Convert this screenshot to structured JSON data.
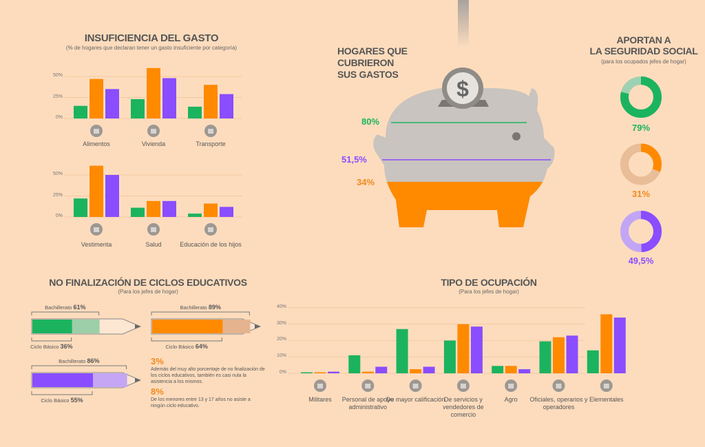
{
  "colors": {
    "green": "#1cb35f",
    "orange": "#ff8a00",
    "purple": "#8a4dff",
    "grey": "#c9c4bf",
    "bg": "#fddcbd"
  },
  "gasto": {
    "title": "INSUFICIENCIA DEL GASTO",
    "subtitle": "(% de hogares que declaran tener un gasto insuficiente por categoría)"
  },
  "chart_data": [
    {
      "type": "bar",
      "title": "INSUFICIENCIA DEL GASTO (fila 1)",
      "yticks": [
        "0%",
        "25%",
        "50%"
      ],
      "ylim": [
        0,
        65
      ],
      "categories": [
        "Alimentos",
        "Vivienda",
        "Transporte"
      ],
      "icons": [
        "plate-icon",
        "house-icon",
        "bus-icon"
      ],
      "series": [
        {
          "name": "green",
          "values": [
            15,
            23,
            14
          ]
        },
        {
          "name": "orange",
          "values": [
            47,
            60,
            40
          ]
        },
        {
          "name": "purple",
          "values": [
            35,
            48,
            29
          ]
        }
      ]
    },
    {
      "type": "bar",
      "title": "INSUFICIENCIA DEL GASTO (fila 2)",
      "yticks": [
        "0%",
        "25%",
        "50%"
      ],
      "ylim": [
        0,
        65
      ],
      "categories": [
        "Vestimenta",
        "Salud",
        "Educación de los hijos"
      ],
      "icons": [
        "clothes-icon",
        "health-icon",
        "graduation-cap-icon"
      ],
      "series": [
        {
          "name": "green",
          "values": [
            22,
            11,
            4
          ]
        },
        {
          "name": "orange",
          "values": [
            61,
            19,
            16
          ]
        },
        {
          "name": "purple",
          "values": [
            50,
            19,
            12
          ]
        }
      ]
    },
    {
      "type": "bar",
      "title": "TIPO DE OCUPACIÓN",
      "yticks": [
        "0%",
        "10%",
        "20%",
        "30%",
        "40%"
      ],
      "ylim": [
        0,
        40
      ],
      "categories": [
        "Militares",
        "Personal de apoyo administrativo",
        "De mayor calificación",
        "De servicios y vendedores de comercio",
        "Agro",
        "Oficiales, operarios y operadores",
        "Elementales"
      ],
      "icons": [
        "helmet-icon",
        "folder-icon",
        "flask-icon",
        "cart-icon",
        "tractor-icon",
        "tools-icon",
        "broom-icon"
      ],
      "series": [
        {
          "name": "green",
          "values": [
            0.5,
            11,
            27,
            20,
            4.5,
            19.5,
            14
          ]
        },
        {
          "name": "orange",
          "values": [
            0.5,
            1,
            2.5,
            30,
            4.5,
            22,
            36
          ]
        },
        {
          "name": "purple",
          "values": [
            1,
            4,
            4,
            28.5,
            2.5,
            23,
            34
          ]
        }
      ]
    },
    {
      "type": "pie",
      "title": "APORTAN A LA SEGURIDAD SOCIAL",
      "values": [
        79,
        31,
        49.5
      ],
      "labels": [
        "79%",
        "31%",
        "49,5%"
      ]
    }
  ],
  "piggy": {
    "title_lines": [
      "HOGARES QUE",
      "CUBRIERON",
      "SUS GASTOS"
    ],
    "green": "80%",
    "purple": "51,5%",
    "orange": "34%",
    "values": [
      80,
      51.5,
      34
    ],
    "coin": "$"
  },
  "seguridad": {
    "title_lines": [
      "APORTAN A",
      "LA SEGURIDAD SOCIAL"
    ],
    "subtitle": "(para los ocupados jefes de hogar)"
  },
  "ciclos": {
    "title": "NO FINALIZACIÓN DE CICLOS EDUCATIVOS",
    "subtitle": "(Para los jefes de hogar)",
    "pencils": [
      {
        "color": "green",
        "bach_label": "Bachillerato",
        "bach": "61%",
        "bach_v": 61,
        "basico_label": "Ciclo Básico",
        "basico": "36%",
        "basico_v": 36
      },
      {
        "color": "orange",
        "bach_label": "Bachillerato",
        "bach": "89%",
        "bach_v": 89,
        "basico_label": "Ciclo Básico",
        "basico": "64%",
        "basico_v": 64
      },
      {
        "color": "purple",
        "bach_label": "Bachillerato",
        "bach": "86%",
        "bach_v": 86,
        "basico_label": "Ciclo Básico",
        "basico": "55%",
        "basico_v": 55
      }
    ],
    "note1_value": "3%",
    "note1_text": "Además del muy alto porcentaje de no finalización de los ciclos educativos, también es casi nula la asistencia a los mismos.",
    "note2_value": "8%",
    "note2_text": "De los menores entre 13 y 17 años no asiste a ningún ciclo educativo."
  },
  "ocupacion": {
    "title": "TIPO DE OCUPACIÓN",
    "subtitle": "(Para los jefes de hogar)"
  }
}
